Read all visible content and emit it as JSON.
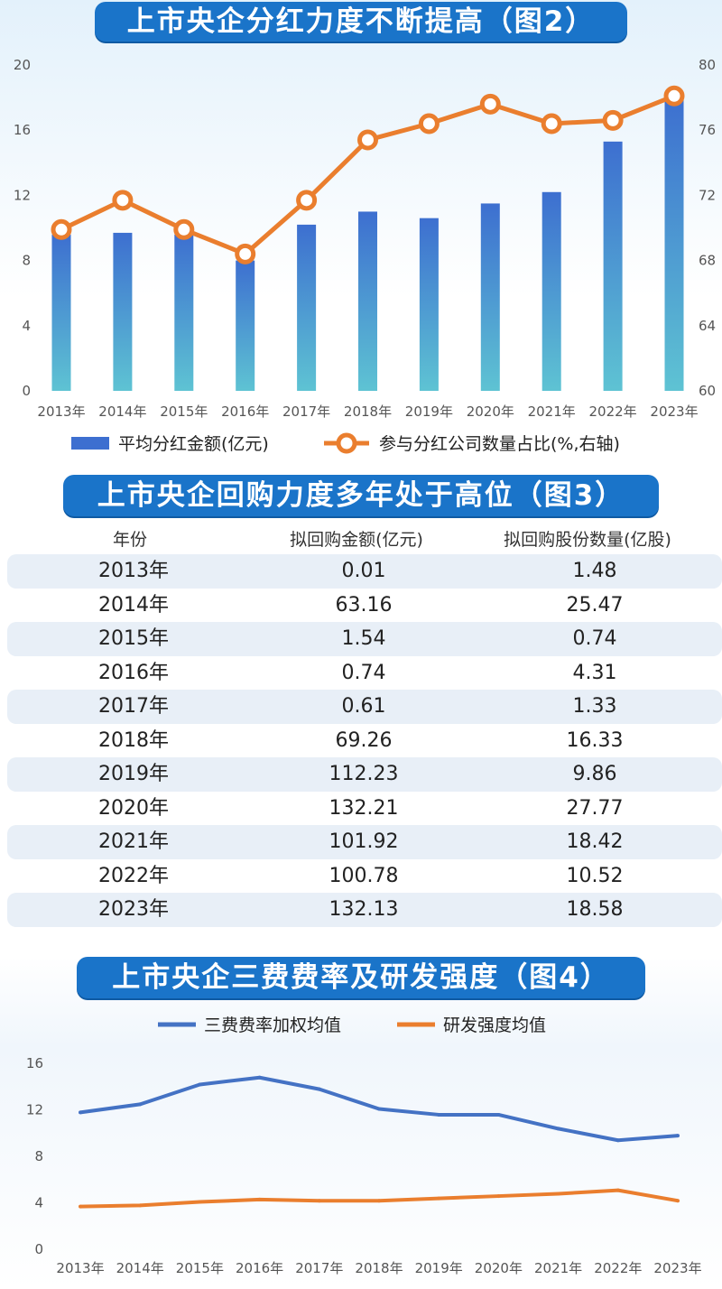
{
  "banner_fig2": "上市央企分红力度不断提高（图2）",
  "banner_fig3": "上市央企回购力度多年处于高位（图3）",
  "banner_fig4": "上市央企三费费率及研发强度（图4）",
  "colors": {
    "bar_top": "#3d6fd0",
    "bar_bottom": "#5ec3d3",
    "orange": "#ea7e2e",
    "blue_line": "#4472c4",
    "banner": "#1a74c9"
  },
  "chart_data": [
    {
      "type": "bar+line",
      "categories": [
        "2013年",
        "2014年",
        "2015年",
        "2016年",
        "2017年",
        "2018年",
        "2019年",
        "2020年",
        "2021年",
        "2022年",
        "2023年"
      ],
      "left_axis": {
        "ylim": [
          0,
          20
        ],
        "ticks": [
          "0",
          "4",
          "8",
          "12",
          "16",
          "20"
        ]
      },
      "right_axis": {
        "ylim": [
          60,
          80
        ],
        "ticks": [
          "60",
          "64",
          "68",
          "72",
          "76",
          "80"
        ]
      },
      "series": [
        {
          "name": "平均分红金额(亿元)",
          "type": "bar",
          "axis": "left",
          "values": [
            9.6,
            9.7,
            9.6,
            8.0,
            10.2,
            11.0,
            10.6,
            11.5,
            12.2,
            15.3,
            18.0
          ]
        },
        {
          "name": "参与分红公司数量占比(%,右轴)",
          "type": "line",
          "axis": "right",
          "values": [
            69.9,
            71.7,
            69.9,
            68.4,
            71.7,
            75.4,
            76.4,
            77.6,
            76.4,
            76.6,
            78.1
          ]
        }
      ],
      "legend_position": "bottom",
      "grid": false
    },
    {
      "type": "table",
      "columns": [
        "年份",
        "拟回购金额(亿元)",
        "拟回购股份数量(亿股)"
      ],
      "rows": [
        [
          "2013年",
          "0.01",
          "1.48"
        ],
        [
          "2014年",
          "63.16",
          "25.47"
        ],
        [
          "2015年",
          "1.54",
          "0.74"
        ],
        [
          "2016年",
          "0.74",
          "4.31"
        ],
        [
          "2017年",
          "0.61",
          "1.33"
        ],
        [
          "2018年",
          "69.26",
          "16.33"
        ],
        [
          "2019年",
          "112.23",
          "9.86"
        ],
        [
          "2020年",
          "132.21",
          "27.77"
        ],
        [
          "2021年",
          "101.92",
          "18.42"
        ],
        [
          "2022年",
          "100.78",
          "10.52"
        ],
        [
          "2023年",
          "132.13",
          "18.58"
        ]
      ]
    },
    {
      "type": "line",
      "categories": [
        "2013年",
        "2014年",
        "2015年",
        "2016年",
        "2017年",
        "2018年",
        "2019年",
        "2020年",
        "2021年",
        "2022年",
        "2023年"
      ],
      "ylim": [
        0,
        16
      ],
      "ticks": [
        "0",
        "4",
        "8",
        "12",
        "16"
      ],
      "series": [
        {
          "name": "三费费率加权均值",
          "values": [
            11.7,
            12.4,
            14.1,
            14.7,
            13.7,
            12.0,
            11.5,
            11.5,
            10.3,
            9.3,
            9.7
          ]
        },
        {
          "name": "研发强度均值",
          "values": [
            3.6,
            3.7,
            4.0,
            4.2,
            4.1,
            4.1,
            4.3,
            4.5,
            4.7,
            5.0,
            4.1
          ]
        }
      ],
      "legend_position": "top",
      "grid": false
    }
  ]
}
